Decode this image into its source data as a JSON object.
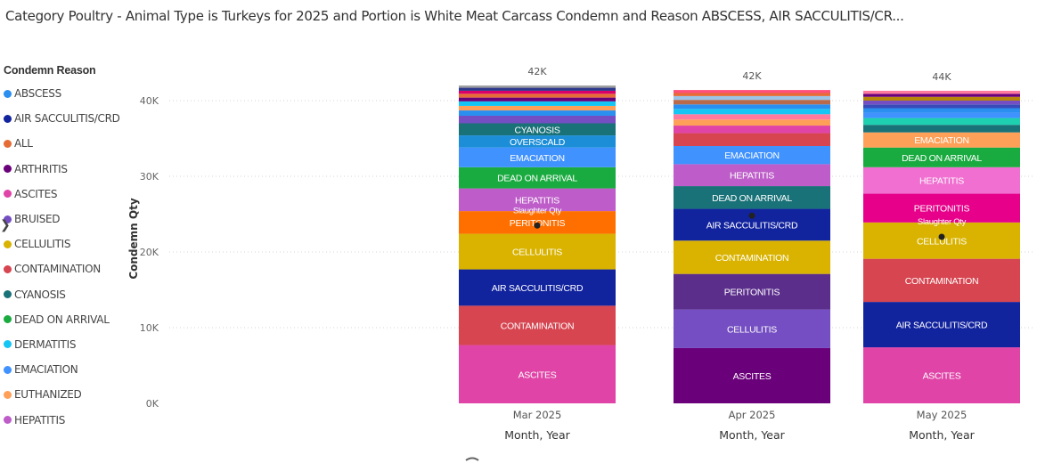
{
  "title": "Category Poultry - Animal Type is Turkeys for 2025 and Portion is White Meat Carcass Condemn and Reason ABSCESS, AIR SACCULITIS/CR...",
  "legend": {
    "title": "Condemn Reason",
    "items": [
      {
        "label": "ABSCESS",
        "color": "#2b8ff0"
      },
      {
        "label": "AIR SACCULITIS/CRD",
        "color": "#12239e"
      },
      {
        "label": "ALL",
        "color": "#e66c37"
      },
      {
        "label": "ARTHRITIS",
        "color": "#6b007b"
      },
      {
        "label": "ASCITES",
        "color": "#e044a7"
      },
      {
        "label": "BRUISED",
        "color": "#744ec2"
      },
      {
        "label": "CELLULITIS",
        "color": "#d9b300"
      },
      {
        "label": "CONTAMINATION",
        "color": "#d64550"
      },
      {
        "label": "CYANOSIS",
        "color": "#197278"
      },
      {
        "label": "DEAD ON ARRIVAL",
        "color": "#1aab40"
      },
      {
        "label": "DERMATITIS",
        "color": "#15c6f4"
      },
      {
        "label": "EMACIATION",
        "color": "#4092ff"
      },
      {
        "label": "EUTHANIZED",
        "color": "#ffa058"
      },
      {
        "label": "HEPATITIS",
        "color": "#be5dc9"
      }
    ]
  },
  "chart_data": {
    "type": "bar",
    "stacked": true,
    "xlabel": "Month, Year",
    "ylabel": "Condemn Qty",
    "ylim": [
      0,
      42000
    ],
    "yticks": [
      0,
      10000,
      20000,
      30000,
      40000
    ],
    "ytick_labels": [
      "0K",
      "10K",
      "20K",
      "30K",
      "40K"
    ],
    "categories": [
      "Mar 2025",
      "Apr 2025",
      "May 2025"
    ],
    "totals": [
      42000,
      42000,
      44000
    ],
    "total_labels": [
      "42K",
      "42K",
      "44K"
    ],
    "overlay_label": "Slaughter Qty",
    "overlay_values": [
      23500,
      24800,
      22000
    ],
    "bars": [
      {
        "category": "Mar 2025",
        "segments": [
          {
            "name": "ASCITES",
            "value": 7700,
            "color": "#e044a7",
            "label": "ASCITES"
          },
          {
            "name": "CONTAMINATION",
            "value": 5200,
            "color": "#d64550",
            "label": "CONTAMINATION"
          },
          {
            "name": "AIR SACCULITIS/CRD",
            "value": 4800,
            "color": "#12239e",
            "label": "AIR SACCULITIS/CRD"
          },
          {
            "name": "CELLULITIS",
            "value": 4700,
            "color": "#d9b300",
            "label": "CELLULITIS"
          },
          {
            "name": "PERITONITIS",
            "value": 3000,
            "color": "#ff6f00",
            "label": "PERITONITIS"
          },
          {
            "name": "HEPATITIS",
            "value": 3000,
            "color": "#be5dc9",
            "label": "HEPATITIS"
          },
          {
            "name": "DEAD ON ARRIVAL",
            "value": 2800,
            "color": "#1aab40",
            "label": "DEAD ON ARRIVAL"
          },
          {
            "name": "EMACIATION",
            "value": 2600,
            "color": "#4092ff",
            "label": "EMACIATION"
          },
          {
            "name": "OVERSCALD",
            "value": 1600,
            "color": "#1c8ed8",
            "label": "OVERSCALD"
          },
          {
            "name": "CYANOSIS",
            "value": 1600,
            "color": "#197278",
            "label": "CYANOSIS"
          },
          {
            "name": "BRUISED",
            "value": 1000,
            "color": "#744ec2",
            "label": ""
          },
          {
            "name": "ABSCESS",
            "value": 700,
            "color": "#2b8ff0",
            "label": ""
          },
          {
            "name": "EUTHANIZED",
            "value": 600,
            "color": "#ffa058",
            "label": ""
          },
          {
            "name": "DERMATITIS",
            "value": 600,
            "color": "#15c6f4",
            "label": ""
          },
          {
            "name": "ARTHRITIS",
            "value": 500,
            "color": "#6b007b",
            "label": ""
          },
          {
            "name": "ALL",
            "value": 500,
            "color": "#e66c37",
            "label": ""
          },
          {
            "name": "OTHER",
            "value": 400,
            "color": "#d9006c",
            "label": ""
          },
          {
            "name": "OTHER",
            "value": 400,
            "color": "#2d3a8c",
            "label": ""
          },
          {
            "name": "OTHER",
            "value": 300,
            "color": "#a0a0a0",
            "label": ""
          }
        ]
      },
      {
        "category": "Apr 2025",
        "segments": [
          {
            "name": "ASCITES",
            "value": 7300,
            "color": "#6b007b",
            "label": "ASCITES"
          },
          {
            "name": "CELLULITIS",
            "value": 5100,
            "color": "#744ec2",
            "label": "CELLULITIS"
          },
          {
            "name": "PERITONITIS",
            "value": 4700,
            "color": "#5b2e8c",
            "label": "PERITONITIS"
          },
          {
            "name": "CONTAMINATION",
            "value": 4400,
            "color": "#d9b300",
            "label": "CONTAMINATION"
          },
          {
            "name": "AIR SACCULITIS/CRD",
            "value": 4200,
            "color": "#12239e",
            "label": "AIR SACCULITIS/CRD"
          },
          {
            "name": "DEAD ON ARRIVAL",
            "value": 3000,
            "color": "#197278",
            "label": "DEAD ON ARRIVAL"
          },
          {
            "name": "HEPATITIS",
            "value": 2900,
            "color": "#be5dc9",
            "label": "HEPATITIS"
          },
          {
            "name": "EMACIATION",
            "value": 2400,
            "color": "#4092ff",
            "label": "EMACIATION"
          },
          {
            "name": "CONTAMINATION",
            "value": 1700,
            "color": "#d64550",
            "label": ""
          },
          {
            "name": "ASCITES",
            "value": 1000,
            "color": "#e044a7",
            "label": ""
          },
          {
            "name": "EUTHANIZED",
            "value": 800,
            "color": "#ffa058",
            "label": ""
          },
          {
            "name": "OTHER",
            "value": 700,
            "color": "#ff7a9c",
            "label": ""
          },
          {
            "name": "DERMATITIS",
            "value": 700,
            "color": "#15c6f4",
            "label": ""
          },
          {
            "name": "ABSCESS",
            "value": 600,
            "color": "#2b8ff0",
            "label": ""
          },
          {
            "name": "OTHER",
            "value": 600,
            "color": "#b86a4a",
            "label": ""
          },
          {
            "name": "OTHER",
            "value": 500,
            "color": "#9dc3e6",
            "label": ""
          },
          {
            "name": "ALL",
            "value": 400,
            "color": "#e66c37",
            "label": ""
          },
          {
            "name": "OTHER",
            "value": 400,
            "color": "#ff4f7a",
            "label": ""
          }
        ]
      },
      {
        "category": "May 2025",
        "segments": [
          {
            "name": "ASCITES",
            "value": 7400,
            "color": "#e044a7",
            "label": "ASCITES"
          },
          {
            "name": "AIR SACCULITIS/CRD",
            "value": 6000,
            "color": "#12239e",
            "label": "AIR SACCULITIS/CRD"
          },
          {
            "name": "CONTAMINATION",
            "value": 5700,
            "color": "#d64550",
            "label": "CONTAMINATION"
          },
          {
            "name": "CELLULITIS",
            "value": 4800,
            "color": "#d9b300",
            "label": "CELLULITIS"
          },
          {
            "name": "PERITONITIS",
            "value": 3800,
            "color": "#e6008a",
            "label": "PERITONITIS"
          },
          {
            "name": "HEPATITIS",
            "value": 3500,
            "color": "#f06fd0",
            "label": "HEPATITIS"
          },
          {
            "name": "DEAD ON ARRIVAL",
            "value": 2600,
            "color": "#1aab40",
            "label": "DEAD ON ARRIVAL"
          },
          {
            "name": "EMACIATION",
            "value": 2000,
            "color": "#ffa058",
            "label": "EMACIATION"
          },
          {
            "name": "CYANOSIS",
            "value": 1000,
            "color": "#197278",
            "label": ""
          },
          {
            "name": "DERMATITIS",
            "value": 900,
            "color": "#1fd0b0",
            "label": ""
          },
          {
            "name": "EMACIATION",
            "value": 700,
            "color": "#4092ff",
            "label": ""
          },
          {
            "name": "ABSCESS",
            "value": 600,
            "color": "#2b8ff0",
            "label": ""
          },
          {
            "name": "OTHER",
            "value": 500,
            "color": "#3a4ab8",
            "label": ""
          },
          {
            "name": "BRUISED",
            "value": 500,
            "color": "#744ec2",
            "label": ""
          },
          {
            "name": "OTHER",
            "value": 500,
            "color": "#b8860b",
            "label": ""
          },
          {
            "name": "ARTHRITIS",
            "value": 400,
            "color": "#6b007b",
            "label": ""
          },
          {
            "name": "OTHER",
            "value": 400,
            "color": "#ff7a9c",
            "label": ""
          }
        ]
      }
    ]
  }
}
